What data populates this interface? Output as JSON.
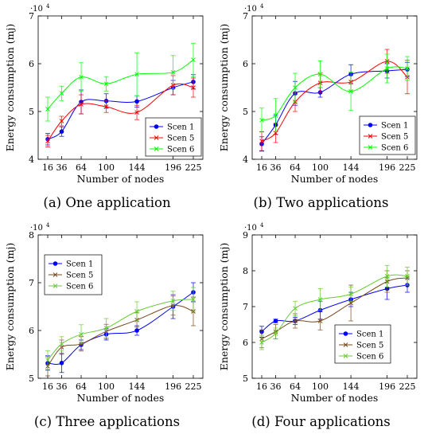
{
  "figure": {
    "panels": [
      {
        "caption": "(a) One application"
      },
      {
        "caption": "(b) Two applications"
      },
      {
        "caption": "(c) Three applications"
      },
      {
        "caption": "(d) Four applications"
      }
    ]
  },
  "colors": {
    "scen1": "#0000ff",
    "scen5": "#ff0000",
    "scen6": "#00ff00",
    "scen5_d": "#7a4a1e",
    "scen6_d": "#66cc33"
  },
  "chart_data": [
    {
      "type": "line",
      "xlabel": "Number of nodes",
      "ylabel": "Energy consumption (mj)",
      "exponent": "10",
      "exponent_power": "4",
      "x": [
        16,
        36,
        64,
        100,
        144,
        196,
        225
      ],
      "x_tick_labels": [
        "16",
        "36",
        "64",
        "100",
        "144",
        "196",
        "225"
      ],
      "ylim": [
        4,
        7
      ],
      "y_ticks": [
        4,
        5,
        6,
        7
      ],
      "y_tick_labels": [
        "4",
        "5",
        "6",
        "7"
      ],
      "legend_position": "bottom-right",
      "series": [
        {
          "name": "Scen 1",
          "marker": "circle",
          "values": [
            4.42,
            4.58,
            5.2,
            5.22,
            5.21,
            5.5,
            5.62
          ],
          "err": [
            0.12,
            0.1,
            0.25,
            0.15,
            0.12,
            0.15,
            0.15
          ]
        },
        {
          "name": "Scen 5",
          "marker": "cross",
          "values": [
            4.38,
            4.8,
            5.15,
            5.1,
            4.98,
            5.55,
            5.5
          ],
          "err": [
            0.12,
            0.1,
            0.2,
            0.12,
            0.15,
            0.2,
            0.2
          ]
        },
        {
          "name": "Scen 6",
          "marker": "cross",
          "values": [
            5.05,
            5.38,
            5.72,
            5.58,
            5.78,
            5.82,
            6.08
          ],
          "err": [
            0.25,
            0.15,
            0.3,
            0.15,
            0.45,
            0.35,
            0.35
          ]
        }
      ]
    },
    {
      "type": "line",
      "xlabel": "Number of nodes",
      "ylabel": "Energy consumption (mj)",
      "exponent": "10",
      "exponent_power": "4",
      "x": [
        16,
        36,
        64,
        100,
        144,
        196,
        225
      ],
      "x_tick_labels": [
        "16",
        "36",
        "64",
        "100",
        "144",
        "196",
        "225"
      ],
      "ylim": [
        4,
        7
      ],
      "y_ticks": [
        4,
        5,
        6,
        7
      ],
      "y_tick_labels": [
        "4",
        "5",
        "6",
        "7"
      ],
      "legend_position": "bottom-right",
      "series": [
        {
          "name": "Scen 1",
          "marker": "circle",
          "values": [
            4.32,
            4.72,
            5.38,
            5.4,
            5.78,
            5.85,
            5.88
          ],
          "err": [
            0.15,
            0.2,
            0.25,
            0.1,
            0.2,
            0.15,
            0.15
          ]
        },
        {
          "name": "Scen 5",
          "marker": "cross",
          "values": [
            4.38,
            4.55,
            5.2,
            5.6,
            5.62,
            6.05,
            5.72
          ],
          "err": [
            0.2,
            0.2,
            0.2,
            0.2,
            0.2,
            0.25,
            0.35
          ]
        },
        {
          "name": "Scen 6",
          "marker": "cross",
          "values": [
            4.82,
            4.92,
            5.5,
            5.78,
            5.42,
            5.9,
            5.9
          ],
          "err": [
            0.25,
            0.35,
            0.3,
            0.28,
            0.4,
            0.3,
            0.25
          ]
        }
      ]
    },
    {
      "type": "line",
      "xlabel": "Number of nodes",
      "ylabel": "Energy consumption (mj)",
      "exponent": "10",
      "exponent_power": "4",
      "x": [
        16,
        36,
        64,
        100,
        144,
        196,
        225
      ],
      "x_tick_labels": [
        "16",
        "36",
        "64",
        "100",
        "144",
        "196",
        "225"
      ],
      "ylim": [
        5,
        8
      ],
      "y_ticks": [
        5,
        6,
        7,
        8
      ],
      "y_tick_labels": [
        "5",
        "6",
        "7",
        "8"
      ],
      "legend_position": "top-left",
      "series": [
        {
          "name": "Scen 1",
          "marker": "circle",
          "values": [
            5.32,
            5.32,
            5.7,
            5.92,
            6.0,
            6.5,
            6.8
          ],
          "err": [
            0.15,
            0.2,
            0.1,
            0.12,
            0.1,
            0.25,
            0.2
          ]
        },
        {
          "name": "Scen 5",
          "marker": "cross",
          "values": [
            5.25,
            5.65,
            5.72,
            5.98,
            6.22,
            6.52,
            6.4
          ],
          "err": [
            0.2,
            0.15,
            0.15,
            0.15,
            0.15,
            0.2,
            0.3
          ]
        },
        {
          "name": "Scen 6",
          "marker": "cross",
          "values": [
            5.38,
            5.72,
            5.92,
            6.05,
            6.4,
            6.62,
            6.65
          ],
          "err": [
            0.2,
            0.15,
            0.2,
            0.2,
            0.2,
            0.2,
            0.25
          ]
        }
      ]
    },
    {
      "type": "line",
      "xlabel": "Number of nodes",
      "ylabel": "Energy consumption (mj)",
      "exponent": "10",
      "exponent_power": "4",
      "x": [
        16,
        36,
        64,
        100,
        144,
        196,
        225
      ],
      "x_tick_labels": [
        "16",
        "36",
        "64",
        "100",
        "144",
        "196",
        "225"
      ],
      "ylim": [
        5,
        9
      ],
      "y_ticks": [
        5,
        6,
        7,
        8,
        9
      ],
      "y_tick_labels": [
        "5",
        "6",
        "7",
        "8",
        "9"
      ],
      "legend_position": "bottom-right",
      "series": [
        {
          "name": "Scen 1",
          "marker": "circle",
          "values": [
            6.3,
            6.6,
            6.6,
            6.9,
            7.2,
            7.5,
            7.6
          ],
          "err": [
            0.15,
            0.05,
            0.1,
            0.25,
            0.2,
            0.3,
            0.2
          ]
        },
        {
          "name": "Scen 5",
          "marker": "cross",
          "values": [
            6.1,
            6.3,
            6.6,
            6.6,
            7.1,
            7.7,
            7.8
          ],
          "err": [
            0.25,
            0.2,
            0.2,
            0.25,
            0.5,
            0.3,
            0.2
          ]
        },
        {
          "name": "Scen 6",
          "marker": "cross",
          "values": [
            6.0,
            6.25,
            6.95,
            7.2,
            7.35,
            7.85,
            7.85
          ],
          "err": [
            0.2,
            0.15,
            0.2,
            0.3,
            0.2,
            0.3,
            0.25
          ]
        }
      ]
    }
  ]
}
